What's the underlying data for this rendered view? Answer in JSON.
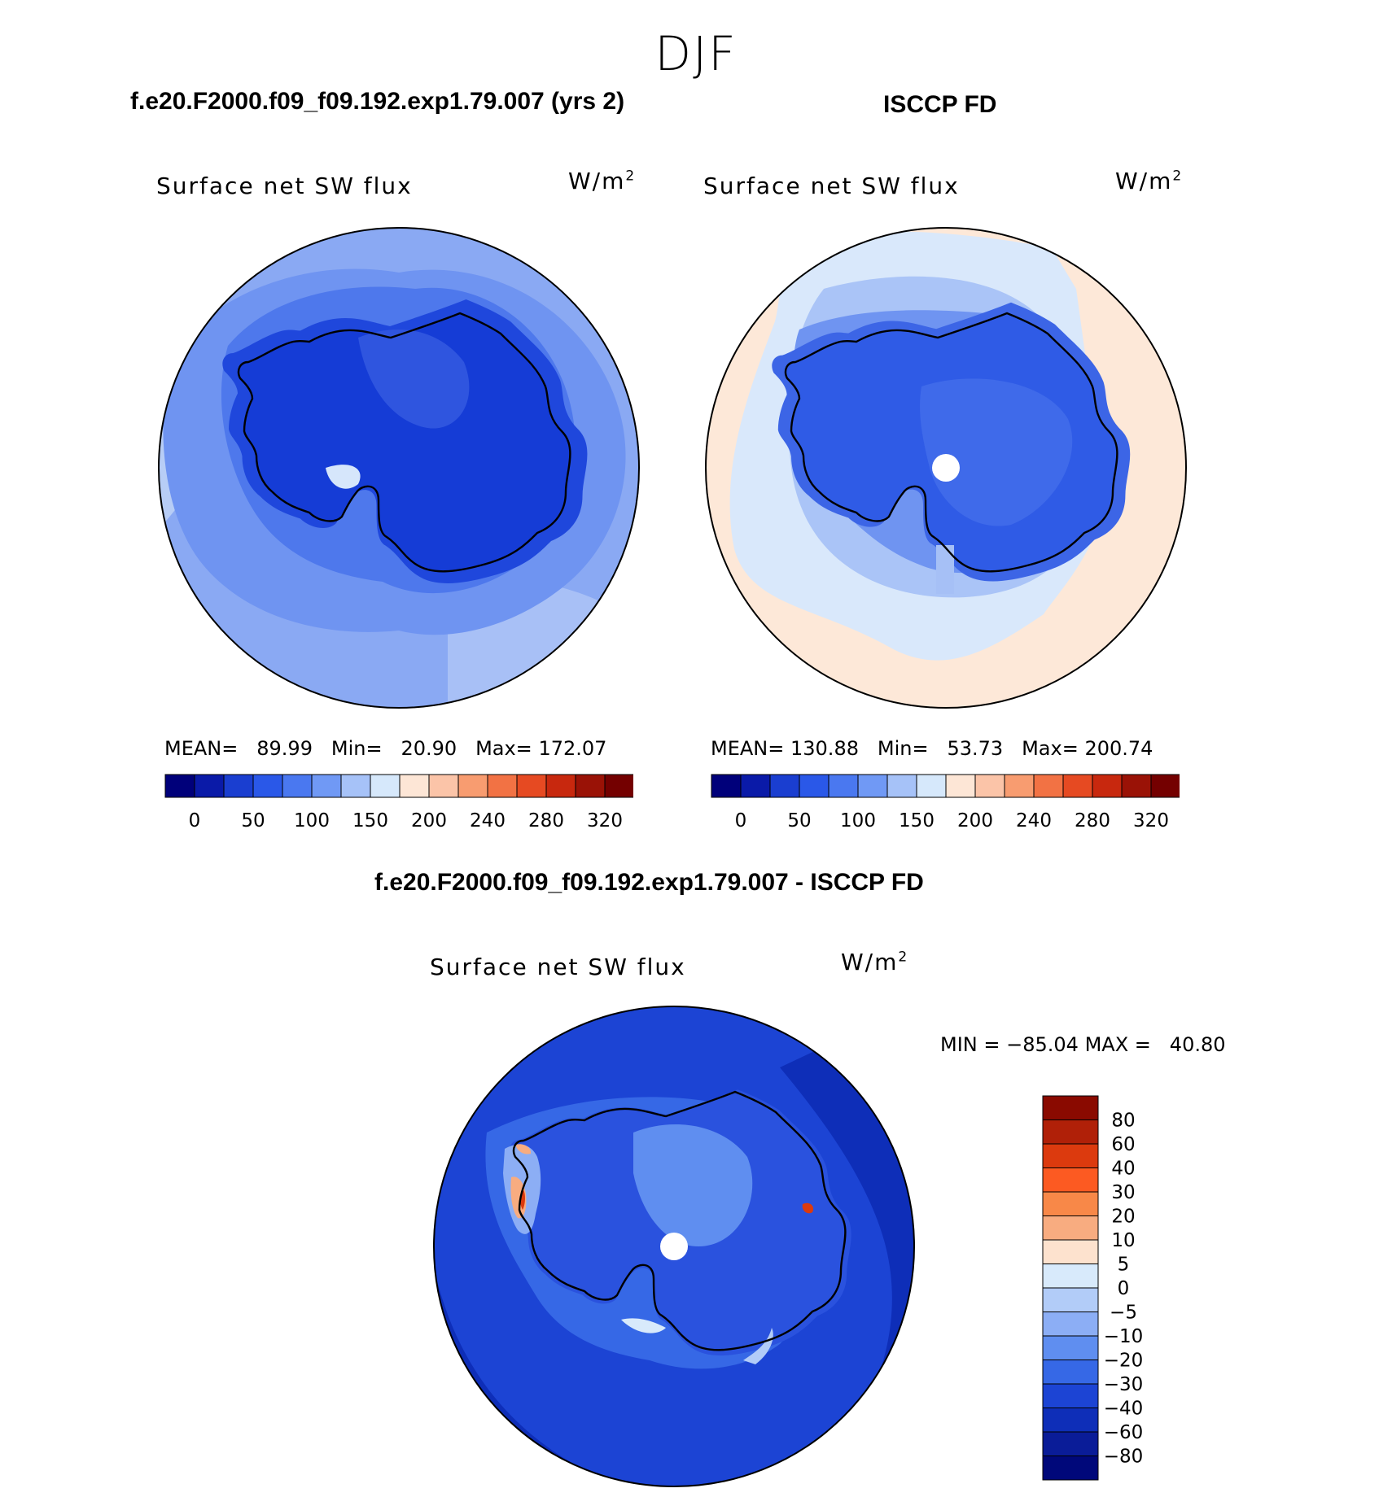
{
  "season": "DJF",
  "panels": {
    "model": {
      "case_title": "f.e20.F2000.f09_f09.192.exp1.79.007 (yrs 2)",
      "variable": "Surface net SW flux",
      "units": "W/m",
      "units_exp": "2",
      "stats": {
        "mean_label": "MEAN=",
        "mean": "89.99",
        "min_label": "Min=",
        "min": "20.90",
        "max_label": "Max=",
        "max": "172.07"
      }
    },
    "obs": {
      "case_title": "ISCCP FD",
      "variable": "Surface net SW flux",
      "units": "W/m",
      "units_exp": "2",
      "stats": {
        "mean_label": "MEAN=",
        "mean": "130.88",
        "min_label": "Min=",
        "min": "53.73",
        "max_label": "Max=",
        "max": "200.74"
      }
    },
    "diff": {
      "case_title": "f.e20.F2000.f09_f09.192.exp1.79.007 - ISCCP FD",
      "variable": "Surface net SW flux",
      "units": "W/m",
      "units_exp": "2",
      "stats": {
        "min_label": "MIN  =",
        "min": "−85.04",
        "max_label": "MAX  =",
        "max": "40.80"
      }
    }
  },
  "abs_colorbar": {
    "colors": [
      "#00007a",
      "#0a1aa8",
      "#1a3ed0",
      "#2a58e8",
      "#4a78f0",
      "#7099f5",
      "#a6c2f8",
      "#d6e8fb",
      "#fde6d6",
      "#fbc4a8",
      "#f89c70",
      "#f27244",
      "#e64a22",
      "#c8280e",
      "#9a1206",
      "#740000"
    ],
    "labels": [
      "0",
      "50",
      "100",
      "150",
      "200",
      "240",
      "280",
      "320"
    ]
  },
  "diff_colorbar": {
    "colors_top_to_bottom": [
      "#8a0a00",
      "#b02008",
      "#dc3a0e",
      "#fc5a22",
      "#f88848",
      "#f8ac80",
      "#fde2ce",
      "#d8eafb",
      "#b2ccf8",
      "#8caef5",
      "#5f8ef0",
      "#3668e6",
      "#1c44d4",
      "#0e2eb8",
      "#0a1c98",
      "#00087a"
    ],
    "labels": [
      "80",
      "60",
      "40",
      "30",
      "20",
      "10",
      "5",
      "0",
      "−5",
      "−10",
      "−20",
      "−30",
      "−40",
      "−60",
      "−80"
    ]
  },
  "icons": [
    "antarctica-coastline-icon",
    "pole-hole-icon"
  ]
}
